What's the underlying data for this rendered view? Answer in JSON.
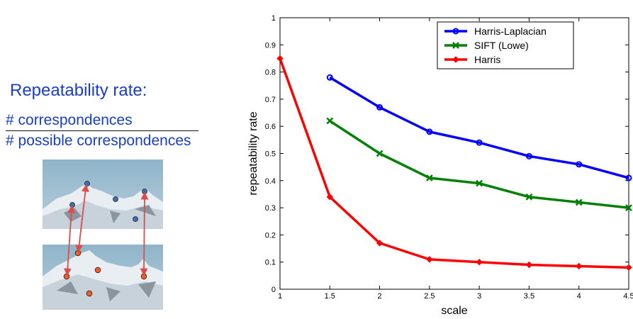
{
  "left": {
    "heading": "Repeatability rate:",
    "numerator": "# correspondences",
    "denominator": "# possible correspondences"
  },
  "colors": {
    "text_blue": "#1a3ec8",
    "harris_laplacian": "#0000ff",
    "sift": "#008000",
    "harris": "#ff0000",
    "marker_blue_fill": "#3f6fb0",
    "marker_red_fill": "#ff5a1f",
    "arrow": "#e04a4a"
  },
  "chart_data": {
    "type": "line",
    "xlabel": "scale",
    "ylabel": "repeatability rate",
    "xlim": [
      1,
      4.5
    ],
    "ylim": [
      0,
      1
    ],
    "xticks": [
      "1",
      "1.5",
      "2",
      "2.5",
      "3",
      "3.5",
      "4",
      "4.5"
    ],
    "yticks": [
      "0",
      "0.1",
      "0.2",
      "0.3",
      "0.4",
      "0.5",
      "0.6",
      "0.7",
      "0.8",
      "0.9",
      "1"
    ],
    "grid": false,
    "legend_position": "top-right",
    "series": [
      {
        "name": "Harris-Laplacian",
        "color": "#0000ff",
        "marker": "circle",
        "x": [
          1.5,
          2,
          2.5,
          3,
          3.5,
          4,
          4.5
        ],
        "y": [
          0.78,
          0.67,
          0.58,
          0.54,
          0.49,
          0.46,
          0.41
        ]
      },
      {
        "name": "SIFT (Lowe)",
        "color": "#008000",
        "marker": "x",
        "x": [
          1.5,
          2,
          2.5,
          3,
          3.5,
          4,
          4.5
        ],
        "y": [
          0.62,
          0.5,
          0.41,
          0.39,
          0.34,
          0.32,
          0.3
        ]
      },
      {
        "name": "Harris",
        "color": "#ff0000",
        "marker": "diamond",
        "x": [
          1,
          1.5,
          2,
          2.5,
          3,
          3.5,
          4,
          4.5
        ],
        "y": [
          0.85,
          0.34,
          0.17,
          0.11,
          0.1,
          0.09,
          0.085,
          0.08
        ]
      }
    ]
  }
}
